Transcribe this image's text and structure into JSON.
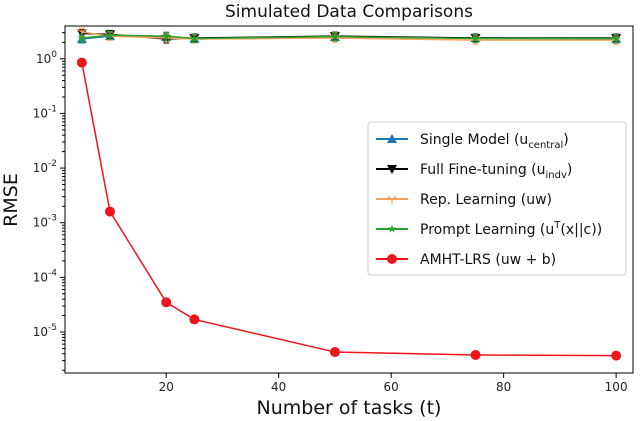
{
  "chart_data": {
    "type": "line",
    "title": "Simulated Data Comparisons",
    "xlabel": "Number of tasks (t)",
    "ylabel": "RMSE",
    "yscale": "log",
    "xlim": [
      2,
      103
    ],
    "ylim_exp": [
      -5.75,
      0.6
    ],
    "xticks": [
      20,
      40,
      60,
      80,
      100
    ],
    "yticks": [
      {
        "exp": 0,
        "label": "10^0"
      },
      {
        "exp": -1,
        "label": "10^-1"
      },
      {
        "exp": -2,
        "label": "10^-2"
      },
      {
        "exp": -3,
        "label": "10^-3"
      },
      {
        "exp": -4,
        "label": "10^-4"
      },
      {
        "exp": -5,
        "label": "10^-5"
      }
    ],
    "legend_position": "center-right",
    "series": [
      {
        "name": "Single Model (u_central)",
        "legend": {
          "base": "Single Model (u",
          "sub": "central",
          "tail": ")"
        },
        "color": "#1f77b4",
        "marker": "triangle-up",
        "x": [
          5,
          10,
          20,
          25,
          50,
          75,
          100
        ],
        "y": [
          2.3,
          2.6,
          2.5,
          2.3,
          2.5,
          2.4,
          2.3
        ]
      },
      {
        "name": "Full Fine-tuning (u_indv)",
        "legend": {
          "base": "Full Fine-tuning (u",
          "sub": "indv",
          "tail": ")"
        },
        "color": "#000000",
        "marker": "triangle-down",
        "x": [
          5,
          10,
          20,
          25,
          50,
          75,
          100
        ],
        "y": [
          2.9,
          2.8,
          2.3,
          2.4,
          2.6,
          2.4,
          2.4
        ]
      },
      {
        "name": "Rep. Learning (uw)",
        "legend": {
          "base": "Rep. Learning (uw)",
          "sub": "",
          "tail": ""
        },
        "color": "#ffa15a",
        "marker": "tri-down",
        "x": [
          5,
          10,
          20,
          25,
          50,
          75,
          100
        ],
        "y": [
          3.1,
          2.6,
          2.4,
          2.3,
          2.4,
          2.2,
          2.2
        ]
      },
      {
        "name": "Prompt Learning (u^T(x||c))",
        "legend": {
          "base": "Prompt Learning (u",
          "sup": "T",
          "tail": "(x||c))"
        },
        "color": "#2ca02c",
        "marker": "star",
        "x": [
          5,
          10,
          20,
          25,
          50,
          75,
          100
        ],
        "y": [
          2.4,
          2.7,
          2.6,
          2.35,
          2.55,
          2.35,
          2.35
        ]
      },
      {
        "name": "AMHT-LRS (uw + b)",
        "legend": {
          "base": "AMHT-LRS (uw + b)",
          "sub": "",
          "tail": ""
        },
        "color": "#f0141e",
        "marker": "circle",
        "x": [
          5,
          10,
          20,
          25,
          50,
          75,
          100
        ],
        "y": [
          0.85,
          0.0016,
          3.5e-05,
          1.7e-05,
          4.3e-06,
          3.8e-06,
          3.7e-06
        ]
      }
    ]
  }
}
